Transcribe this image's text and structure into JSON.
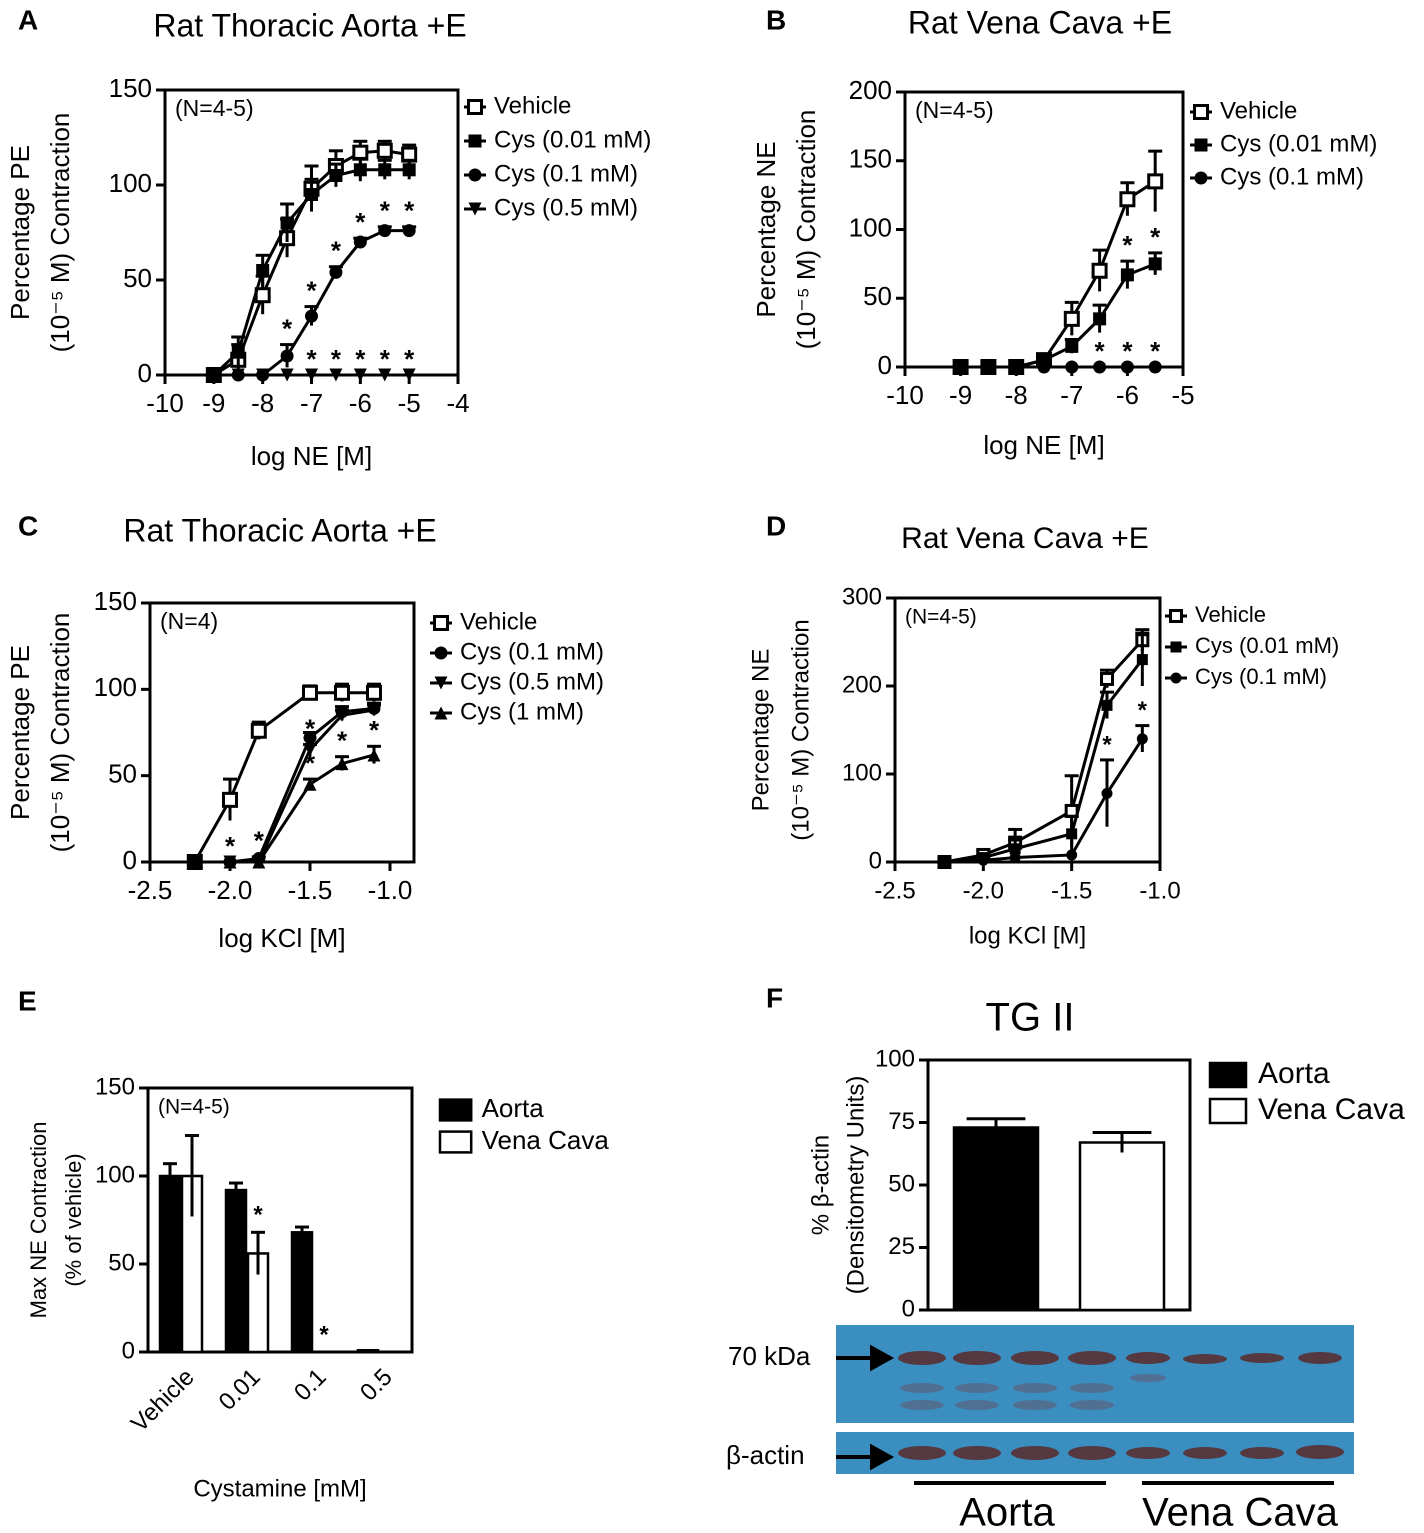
{
  "chart_data": [
    {
      "type": "line",
      "panel": "A",
      "title": "Rat Thoracic Aorta +E",
      "note": "(N=4-5)",
      "xlabel": "log NE [M]",
      "ylabel": [
        "Percentage PE",
        "(10⁻⁵ M) Contraction"
      ],
      "xlim": [
        -10,
        -4
      ],
      "xticks": [
        -10,
        -9,
        -8,
        -7,
        -6,
        -5,
        -4
      ],
      "ylim": [
        0,
        150
      ],
      "yticks": [
        0,
        50,
        100,
        150
      ],
      "x": [
        -9,
        -8.5,
        -8,
        -7.5,
        -7,
        -6.5,
        -6,
        -5.5,
        -5
      ],
      "series": [
        {
          "name": "Vehicle",
          "marker": "square-open",
          "color": "#000000",
          "values": [
            0,
            8,
            42,
            72,
            98,
            110,
            117,
            118,
            116
          ],
          "errors": [
            2,
            8,
            10,
            10,
            12,
            8,
            6,
            5,
            5
          ]
        },
        {
          "name": "Cys (0.01 mM)",
          "marker": "square",
          "color": "#000000",
          "values": [
            0,
            12,
            55,
            80,
            95,
            105,
            108,
            108,
            108
          ],
          "errors": [
            2,
            8,
            8,
            10,
            8,
            6,
            6,
            5,
            5
          ]
        },
        {
          "name": "Cys (0.1 mM)",
          "marker": "circle",
          "color": "#000000",
          "values": [
            0,
            0,
            0,
            10,
            31,
            54,
            70,
            76,
            76
          ],
          "errors": [
            0,
            0,
            0,
            6,
            5,
            3,
            2,
            2,
            2
          ],
          "point_labels": [
            null,
            null,
            null,
            "*",
            "*",
            "*",
            "*",
            "*",
            "*"
          ]
        },
        {
          "name": "Cys (0.5 mM)",
          "marker": "triangle-down",
          "color": "#000000",
          "values": [
            0,
            0,
            0,
            0,
            0,
            0,
            0,
            0,
            0
          ],
          "errors": [
            0,
            0,
            0,
            0,
            0,
            0,
            0,
            0,
            0
          ],
          "point_labels": [
            null,
            null,
            null,
            null,
            "*",
            "*",
            "*",
            "*",
            "*"
          ]
        }
      ]
    },
    {
      "type": "line",
      "panel": "B",
      "title": "Rat Vena Cava +E",
      "note": "(N=4-5)",
      "xlabel": "log NE [M]",
      "ylabel": [
        "Percentage NE",
        "(10⁻⁵ M) Contraction"
      ],
      "xlim": [
        -10,
        -5
      ],
      "xticks": [
        -10,
        -9,
        -8,
        -7,
        -6,
        -5
      ],
      "ylim": [
        0,
        200
      ],
      "yticks": [
        0,
        50,
        100,
        150,
        200
      ],
      "x": [
        -9,
        -8.5,
        -8,
        -7.5,
        -7,
        -6.5,
        -6,
        -5.5
      ],
      "series": [
        {
          "name": "Vehicle",
          "marker": "square-open",
          "color": "#000000",
          "values": [
            0,
            0,
            0,
            5,
            35,
            70,
            122,
            135
          ],
          "errors": [
            0,
            0,
            0,
            3,
            12,
            15,
            12,
            22
          ]
        },
        {
          "name": "Cys (0.01 mM)",
          "marker": "square",
          "color": "#000000",
          "values": [
            0,
            0,
            0,
            5,
            15,
            35,
            67,
            75
          ],
          "errors": [
            0,
            0,
            0,
            3,
            5,
            10,
            10,
            8
          ],
          "point_labels": [
            null,
            null,
            null,
            null,
            null,
            null,
            "*",
            "*"
          ]
        },
        {
          "name": "Cys (0.1 mM)",
          "marker": "circle",
          "color": "#000000",
          "values": [
            0,
            0,
            0,
            0,
            0,
            0,
            0,
            0
          ],
          "errors": [
            0,
            0,
            0,
            0,
            0,
            0,
            0,
            0
          ],
          "point_labels": [
            null,
            null,
            null,
            null,
            null,
            "*",
            "*",
            "*"
          ]
        }
      ]
    },
    {
      "type": "line",
      "panel": "C",
      "title": "Rat Thoracic Aorta +E",
      "note": "(N=4)",
      "xlabel": "log KCl [M]",
      "ylabel": [
        "Percentage PE",
        "(10⁻⁵ M) Contraction"
      ],
      "xlim": [
        -2.5,
        -0.85
      ],
      "xticks": [
        -2.5,
        {
          "value": -2,
          "label": "-2.0"
        },
        -1.5,
        {
          "value": -1,
          "label": "-1.0"
        }
      ],
      "ylim": [
        0,
        150
      ],
      "yticks": [
        0,
        50,
        100,
        150
      ],
      "x": [
        -2.22,
        -2,
        -1.82,
        -1.5,
        -1.3,
        -1.1
      ],
      "series": [
        {
          "name": "Vehicle",
          "marker": "square-open",
          "color": "#000000",
          "values": [
            0,
            36,
            76,
            98,
            98,
            98
          ],
          "errors": [
            0,
            12,
            5,
            4,
            5,
            5
          ]
        },
        {
          "name": "Cys (0.1 mM)",
          "marker": "circle",
          "color": "#000000",
          "values": [
            0,
            0,
            2,
            72,
            87,
            89
          ],
          "errors": [
            0,
            0,
            1,
            3,
            3,
            3
          ],
          "point_labels": [
            null,
            "*",
            "*",
            null,
            null,
            null
          ]
        },
        {
          "name": "Cys (0.5 mM)",
          "marker": "triangle-down",
          "color": "#000000",
          "values": [
            0,
            0,
            0,
            65,
            85,
            88
          ],
          "errors": [
            0,
            0,
            0,
            3,
            3,
            3
          ],
          "point_labels": [
            null,
            null,
            null,
            "*",
            null,
            null
          ]
        },
        {
          "name": "Cys (1 mM)",
          "marker": "triangle-up",
          "color": "#000000",
          "values": [
            0,
            0,
            0,
            45,
            57,
            62
          ],
          "errors": [
            0,
            0,
            0,
            3,
            4,
            5
          ],
          "point_labels": [
            null,
            null,
            null,
            "*",
            "*",
            "*"
          ]
        }
      ]
    },
    {
      "type": "line",
      "panel": "D",
      "title": "Rat Vena Cava +E",
      "note": "(N=4-5)",
      "xlabel": "log KCl [M]",
      "ylabel": [
        "Percentage NE",
        "(10⁻⁵ M) Contraction"
      ],
      "xlim": [
        -2.5,
        -1
      ],
      "xticks": [
        -2.5,
        {
          "value": -2,
          "label": "-2.0"
        },
        -1.5,
        {
          "value": -1,
          "label": "-1.0"
        }
      ],
      "ylim": [
        0,
        300
      ],
      "yticks": [
        0,
        100,
        200,
        300
      ],
      "x": [
        -2.22,
        -2,
        -1.82,
        -1.5,
        -1.3,
        -1.1
      ],
      "series": [
        {
          "name": "Vehicle",
          "marker": "square-open",
          "color": "#000000",
          "values": [
            0,
            8,
            22,
            58,
            208,
            252
          ],
          "errors": [
            2,
            5,
            15,
            40,
            10,
            12
          ]
        },
        {
          "name": "Cys (0.01 mM)",
          "marker": "square",
          "color": "#000000",
          "values": [
            0,
            5,
            15,
            32,
            178,
            230
          ],
          "errors": [
            2,
            4,
            10,
            20,
            15,
            30
          ]
        },
        {
          "name": "Cys (0.1 mM)",
          "marker": "circle",
          "color": "#000000",
          "values": [
            0,
            2,
            5,
            8,
            78,
            140
          ],
          "errors": [
            0,
            0,
            0,
            0,
            38,
            15
          ],
          "point_labels": [
            null,
            null,
            null,
            null,
            "*",
            "*"
          ]
        }
      ]
    },
    {
      "type": "bar",
      "panel": "E",
      "note": "(N=4-5)",
      "xlabel": "Cystamine [mM]",
      "ylabel": [
        "Max NE Contraction",
        "(% of vehicle)"
      ],
      "ylim": [
        0,
        150
      ],
      "yticks": [
        0,
        50,
        100,
        150
      ],
      "categories": [
        "Vehicle",
        "0.01",
        "0.1",
        "0.5"
      ],
      "series": [
        {
          "name": "Aorta",
          "color": "#000000",
          "values": [
            100,
            92,
            68,
            1
          ],
          "errors": [
            7,
            4,
            3,
            0
          ]
        },
        {
          "name": "Vena Cava",
          "color": "#ffffff",
          "values": [
            100,
            56,
            0,
            0
          ],
          "errors": [
            23,
            12,
            0,
            0
          ],
          "point_labels": [
            null,
            "*",
            "*",
            null
          ]
        }
      ]
    },
    {
      "type": "bar",
      "panel": "F",
      "title": "TG II",
      "ylabel": [
        "% β-actin",
        "(Densitometry Units)"
      ],
      "ylim": [
        0,
        100
      ],
      "yticks": [
        0,
        25,
        50,
        75,
        100
      ],
      "series": [
        {
          "name": "Aorta",
          "color": "#000000",
          "values": [
            73
          ],
          "errors": [
            3.5
          ]
        },
        {
          "name": "Vena Cava",
          "color": "#ffffff",
          "values": [
            67
          ],
          "errors": [
            4
          ]
        }
      ]
    }
  ],
  "blot": {
    "labels": [
      "70 kDa",
      "β-actin"
    ],
    "groups": [
      "Aorta",
      "Vena Cava"
    ]
  }
}
